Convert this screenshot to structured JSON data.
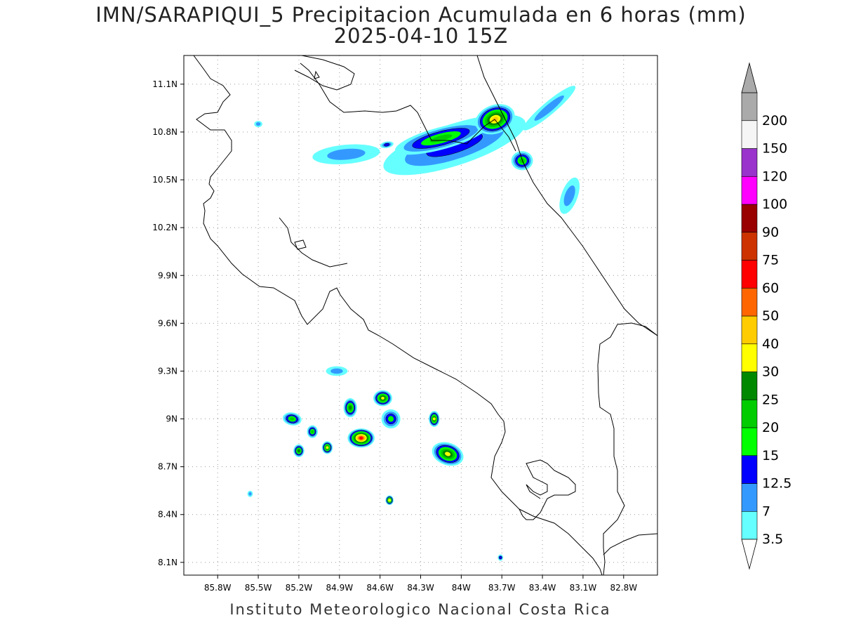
{
  "header": {
    "title": "IMN/SARAPIQUI_5 Precipitacion Acumulada en 6 horas (mm)",
    "datetime": "2025-04-10 15Z"
  },
  "footer": {
    "credit": "Instituto Meteorologico Nacional Costa Rica"
  },
  "map": {
    "lon_range": [
      -86.05,
      -82.55
    ],
    "lat_range": [
      8.02,
      11.28
    ],
    "lon_ticks": [
      {
        "value": -85.8,
        "label": "85.8W"
      },
      {
        "value": -85.5,
        "label": "85.5W"
      },
      {
        "value": -85.2,
        "label": "85.2W"
      },
      {
        "value": -84.9,
        "label": "84.9W"
      },
      {
        "value": -84.6,
        "label": "84.6W"
      },
      {
        "value": -84.3,
        "label": "84.3W"
      },
      {
        "value": -84.0,
        "label": "84W"
      },
      {
        "value": -83.7,
        "label": "83.7W"
      },
      {
        "value": -83.4,
        "label": "83.4W"
      },
      {
        "value": -83.1,
        "label": "83.1W"
      },
      {
        "value": -82.8,
        "label": "82.8W"
      }
    ],
    "lat_ticks": [
      {
        "value": 11.1,
        "label": "11.1N"
      },
      {
        "value": 10.8,
        "label": "10.8N"
      },
      {
        "value": 10.5,
        "label": "10.5N"
      },
      {
        "value": 10.2,
        "label": "10.2N"
      },
      {
        "value": 9.9,
        "label": "9.9N"
      },
      {
        "value": 9.6,
        "label": "9.6N"
      },
      {
        "value": 9.3,
        "label": "9.3N"
      },
      {
        "value": 9.0,
        "label": "9N"
      },
      {
        "value": 8.7,
        "label": "8.7N"
      },
      {
        "value": 8.4,
        "label": "8.4N"
      },
      {
        "value": 8.1,
        "label": "8.1N"
      }
    ],
    "grid": true
  },
  "legend": {
    "levels": [
      {
        "label": "3.5",
        "color": "#66ffff"
      },
      {
        "label": "7",
        "color": "#3399ff"
      },
      {
        "label": "12.5",
        "color": "#0000ff"
      },
      {
        "label": "15",
        "color": "#00ff00"
      },
      {
        "label": "20",
        "color": "#00cc00"
      },
      {
        "label": "25",
        "color": "#008800"
      },
      {
        "label": "30",
        "color": "#ffff00"
      },
      {
        "label": "40",
        "color": "#ffcc00"
      },
      {
        "label": "50",
        "color": "#ff6600"
      },
      {
        "label": "60",
        "color": "#ff0000"
      },
      {
        "label": "75",
        "color": "#cc3300"
      },
      {
        "label": "90",
        "color": "#990000"
      },
      {
        "label": "100",
        "color": "#ff00ff"
      },
      {
        "label": "120",
        "color": "#9933cc"
      },
      {
        "label": "150",
        "color": "#f5f5f5"
      },
      {
        "label": "200",
        "color": "#aaaaaa"
      }
    ],
    "below_color": "#ffffff",
    "above_color": "#aaaaaa"
  },
  "precip_cells": [
    {
      "lon": -84.05,
      "lat": 10.72,
      "rx": 0.55,
      "ry": 0.13,
      "rot": -18,
      "level": 2
    },
    {
      "lon": -84.85,
      "lat": 10.66,
      "rx": 0.25,
      "ry": 0.06,
      "rot": -5,
      "level": 1
    },
    {
      "lon": -84.15,
      "lat": 10.76,
      "rx": 0.35,
      "ry": 0.07,
      "rot": -15,
      "level": 4
    },
    {
      "lon": -83.75,
      "lat": 10.88,
      "rx": 0.15,
      "ry": 0.09,
      "rot": -20,
      "level": 7
    },
    {
      "lon": -83.55,
      "lat": 10.62,
      "rx": 0.08,
      "ry": 0.06,
      "rot": 0,
      "level": 4
    },
    {
      "lon": -83.35,
      "lat": 10.95,
      "rx": 0.25,
      "ry": 0.04,
      "rot": -40,
      "level": 1
    },
    {
      "lon": -84.55,
      "lat": 10.72,
      "rx": 0.05,
      "ry": 0.02,
      "rot": -10,
      "level": 2
    },
    {
      "lon": -83.2,
      "lat": 10.4,
      "rx": 0.06,
      "ry": 0.12,
      "rot": 20,
      "level": 1
    },
    {
      "lon": -85.25,
      "lat": 9.0,
      "rx": 0.07,
      "ry": 0.04,
      "rot": 10,
      "level": 4
    },
    {
      "lon": -85.2,
      "lat": 8.8,
      "rx": 0.04,
      "ry": 0.04,
      "rot": 0,
      "level": 5
    },
    {
      "lon": -85.1,
      "lat": 8.92,
      "rx": 0.04,
      "ry": 0.04,
      "rot": 0,
      "level": 4
    },
    {
      "lon": -84.99,
      "lat": 8.82,
      "rx": 0.04,
      "ry": 0.04,
      "rot": 0,
      "level": 6
    },
    {
      "lon": -84.82,
      "lat": 9.07,
      "rx": 0.05,
      "ry": 0.06,
      "rot": 0,
      "level": 5
    },
    {
      "lon": -84.74,
      "lat": 8.88,
      "rx": 0.1,
      "ry": 0.06,
      "rot": 0,
      "level": 9
    },
    {
      "lon": -84.58,
      "lat": 9.13,
      "rx": 0.07,
      "ry": 0.05,
      "rot": 0,
      "level": 6
    },
    {
      "lon": -84.52,
      "lat": 9.0,
      "rx": 0.07,
      "ry": 0.06,
      "rot": 0,
      "level": 3
    },
    {
      "lon": -84.2,
      "lat": 9.0,
      "rx": 0.04,
      "ry": 0.05,
      "rot": 0,
      "level": 6
    },
    {
      "lon": -84.1,
      "lat": 8.78,
      "rx": 0.12,
      "ry": 0.07,
      "rot": 20,
      "level": 6
    },
    {
      "lon": -84.53,
      "lat": 8.49,
      "rx": 0.03,
      "ry": 0.03,
      "rot": 0,
      "level": 6
    },
    {
      "lon": -84.92,
      "lat": 9.3,
      "rx": 0.08,
      "ry": 0.03,
      "rot": 0,
      "level": 1
    },
    {
      "lon": -83.71,
      "lat": 8.13,
      "rx": 0.02,
      "ry": 0.02,
      "rot": 0,
      "level": 2
    },
    {
      "lon": -85.56,
      "lat": 8.53,
      "rx": 0.02,
      "ry": 0.02,
      "rot": 0,
      "level": 1
    },
    {
      "lon": -85.5,
      "lat": 10.85,
      "rx": 0.03,
      "ry": 0.02,
      "rot": 0,
      "level": 1
    }
  ]
}
